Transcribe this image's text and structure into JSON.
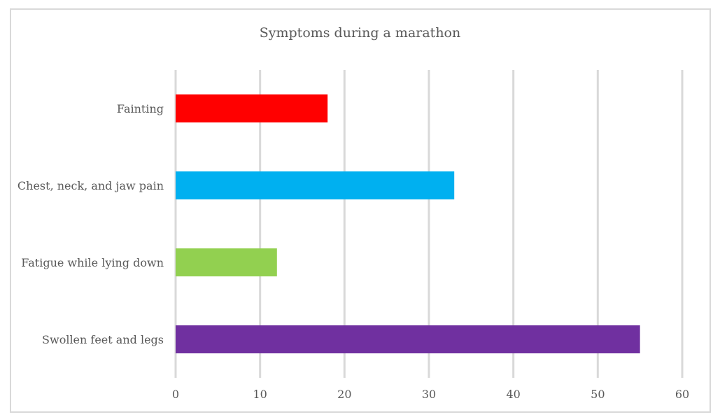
{
  "chart_data": {
    "type": "bar",
    "orientation": "horizontal",
    "title": "Symptoms during a marathon",
    "xlabel": "",
    "ylabel": "",
    "categories": [
      "Fainting",
      "Chest, neck, and jaw pain",
      "Fatigue while lying down",
      "Swollen feet and legs"
    ],
    "values": [
      18,
      33,
      12,
      55
    ],
    "colors": [
      "#ff0000",
      "#00b0f0",
      "#92d050",
      "#7030a0"
    ],
    "xlim": [
      0,
      60
    ],
    "xticks": [
      "0",
      "10",
      "20",
      "30",
      "40",
      "50",
      "60"
    ],
    "grid": true,
    "legend": "none"
  }
}
